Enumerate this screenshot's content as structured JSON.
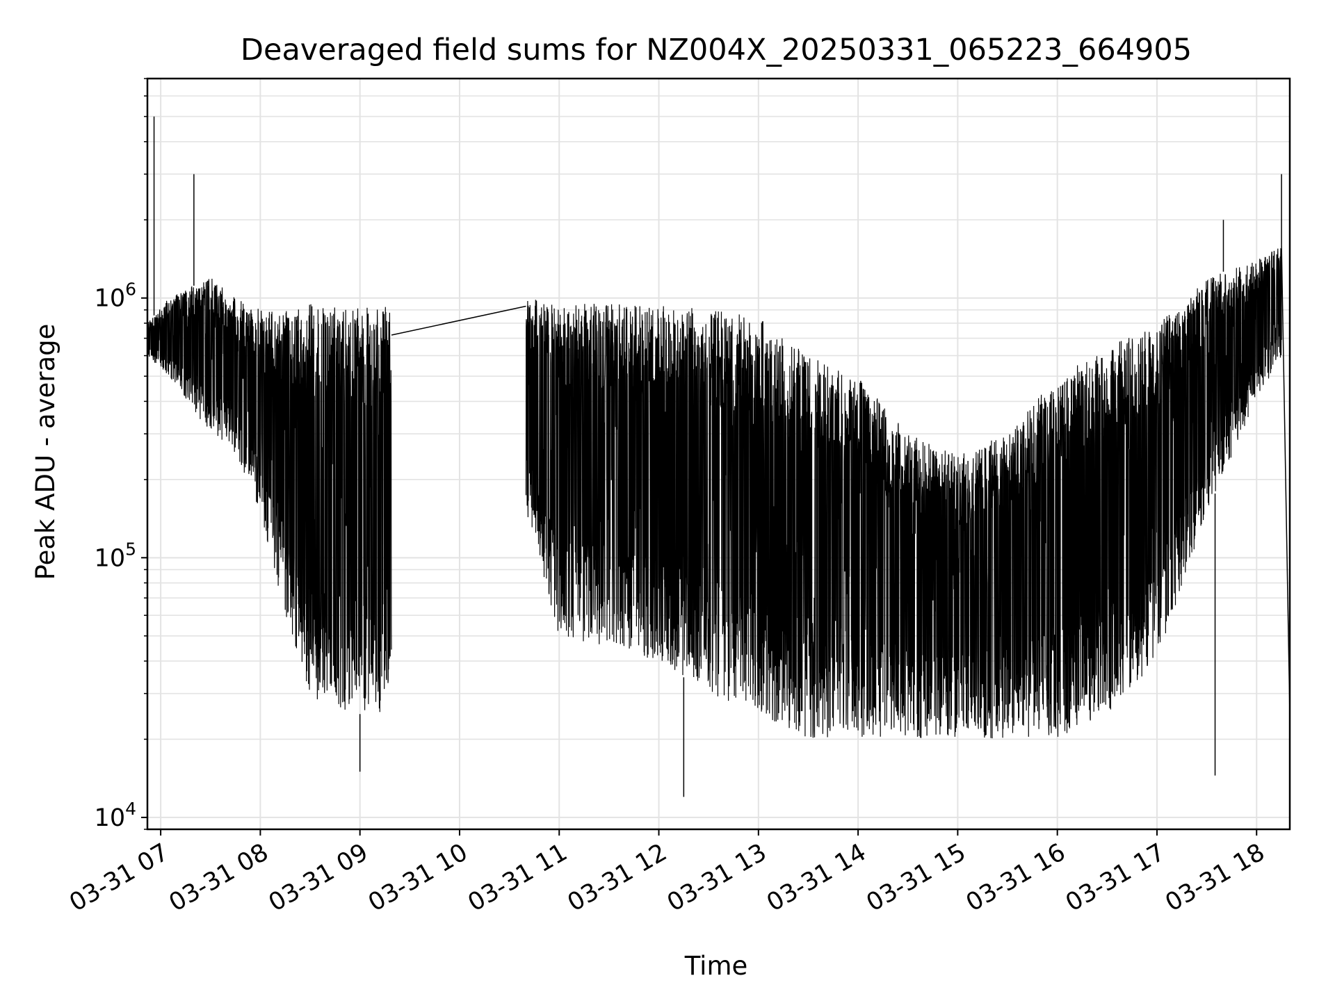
{
  "chart_data": {
    "type": "line",
    "title": "Deaveraged field sums for NZ004X_20250331_065223_664905",
    "xlabel": "Time",
    "ylabel": "Peak ADU - average",
    "yscale": "log",
    "ylim": [
      9000,
      7000000
    ],
    "xlim": [
      "2025-03-31 06:52",
      "2025-03-31 18:20"
    ],
    "grid": true,
    "x_ticks": [
      {
        "x": "2025-03-31 07:00",
        "label": "03-31 07"
      },
      {
        "x": "2025-03-31 08:00",
        "label": "03-31 08"
      },
      {
        "x": "2025-03-31 09:00",
        "label": "03-31 09"
      },
      {
        "x": "2025-03-31 10:00",
        "label": "03-31 10"
      },
      {
        "x": "2025-03-31 11:00",
        "label": "03-31 11"
      },
      {
        "x": "2025-03-31 12:00",
        "label": "03-31 12"
      },
      {
        "x": "2025-03-31 13:00",
        "label": "03-31 13"
      },
      {
        "x": "2025-03-31 14:00",
        "label": "03-31 14"
      },
      {
        "x": "2025-03-31 15:00",
        "label": "03-31 15"
      },
      {
        "x": "2025-03-31 16:00",
        "label": "03-31 16"
      },
      {
        "x": "2025-03-31 17:00",
        "label": "03-31 17"
      },
      {
        "x": "2025-03-31 18:00",
        "label": "03-31 18"
      }
    ],
    "y_ticks": [
      {
        "value": 10000,
        "base": "10",
        "exp": "4"
      },
      {
        "value": 100000,
        "base": "10",
        "exp": "5"
      },
      {
        "value": 1000000,
        "base": "10",
        "exp": "6"
      }
    ],
    "series": [
      {
        "color": "#000000",
        "envelope": [
          {
            "x": "2025-03-31 06:52",
            "upper": 800000,
            "lower": 600000
          },
          {
            "x": "2025-03-31 07:05",
            "upper": 1000000,
            "lower": 500000
          },
          {
            "x": "2025-03-31 07:30",
            "upper": 1200000,
            "lower": 300000
          },
          {
            "x": "2025-03-31 07:45",
            "upper": 1000000,
            "lower": 250000
          },
          {
            "x": "2025-03-31 08:00",
            "upper": 900000,
            "lower": 150000
          },
          {
            "x": "2025-03-31 08:15",
            "upper": 900000,
            "lower": 60000
          },
          {
            "x": "2025-03-31 08:30",
            "upper": 950000,
            "lower": 30000
          },
          {
            "x": "2025-03-31 08:45",
            "upper": 950000,
            "lower": 25000
          },
          {
            "x": "2025-03-31 09:00",
            "upper": 950000,
            "lower": 25000
          },
          {
            "x": "2025-03-31 09:19",
            "upper": 950000,
            "lower": 25000
          },
          {
            "x": "2025-03-31 10:40",
            "upper": 1000000,
            "lower": 150000
          },
          {
            "x": "2025-03-31 11:00",
            "upper": 950000,
            "lower": 50000
          },
          {
            "x": "2025-03-31 12:00",
            "upper": 950000,
            "lower": 40000
          },
          {
            "x": "2025-03-31 12:30",
            "upper": 900000,
            "lower": 30000
          },
          {
            "x": "2025-03-31 13:00",
            "upper": 850000,
            "lower": 25000
          },
          {
            "x": "2025-03-31 13:30",
            "upper": 600000,
            "lower": 20000
          },
          {
            "x": "2025-03-31 14:00",
            "upper": 500000,
            "lower": 20000
          },
          {
            "x": "2025-03-31 14:30",
            "upper": 300000,
            "lower": 20000
          },
          {
            "x": "2025-03-31 15:00",
            "upper": 250000,
            "lower": 20000
          },
          {
            "x": "2025-03-31 15:30",
            "upper": 300000,
            "lower": 20000
          },
          {
            "x": "2025-03-31 16:00",
            "upper": 500000,
            "lower": 20000
          },
          {
            "x": "2025-03-31 16:30",
            "upper": 650000,
            "lower": 25000
          },
          {
            "x": "2025-03-31 17:00",
            "upper": 800000,
            "lower": 40000
          },
          {
            "x": "2025-03-31 17:30",
            "upper": 1200000,
            "lower": 150000
          },
          {
            "x": "2025-03-31 18:00",
            "upper": 1400000,
            "lower": 400000
          },
          {
            "x": "2025-03-31 18:15",
            "upper": 1600000,
            "lower": 600000
          }
        ],
        "spikes": [
          {
            "x": "2025-03-31 06:56",
            "y": 5000000
          },
          {
            "x": "2025-03-31 07:20",
            "y": 3000000
          },
          {
            "x": "2025-03-31 17:40",
            "y": 2000000
          },
          {
            "x": "2025-03-31 18:15",
            "y": 3000000
          },
          {
            "x": "2025-03-31 12:15",
            "y": 12000
          },
          {
            "x": "2025-03-31 09:00",
            "y": 15000
          },
          {
            "x": "2025-03-31 17:35",
            "y": 14500
          }
        ],
        "connector": [
          {
            "x": "2025-03-31 09:19",
            "y": 720000
          },
          {
            "x": "2025-03-31 10:40",
            "y": 930000
          }
        ],
        "tail": [
          {
            "x": "2025-03-31 18:15",
            "y": 1600000
          },
          {
            "x": "2025-03-31 18:20",
            "y": 25000
          }
        ]
      }
    ]
  }
}
